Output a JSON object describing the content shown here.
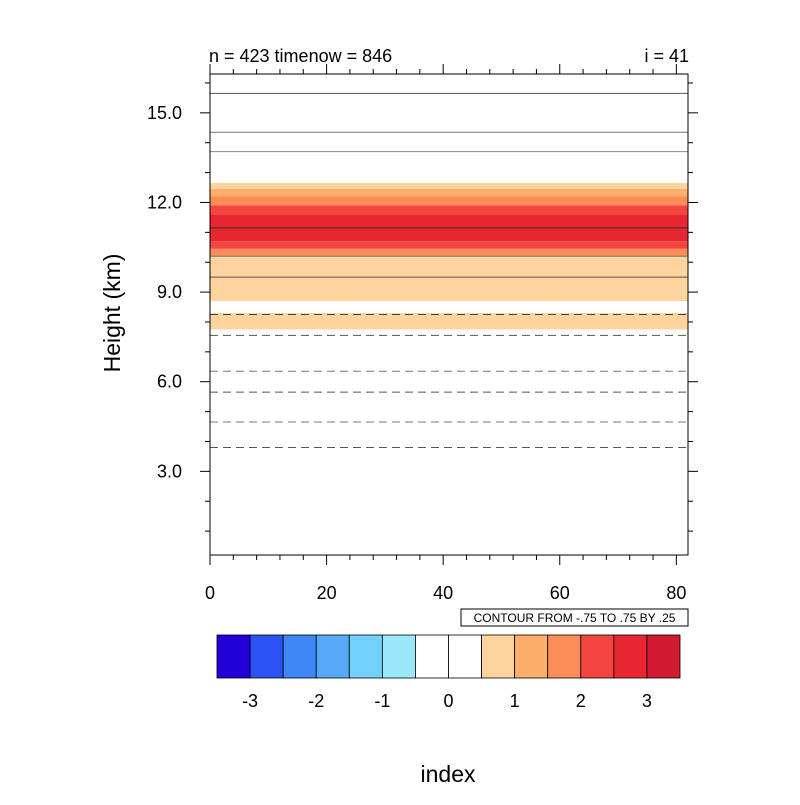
{
  "header": {
    "left_title": "n = 423 timenow = 846",
    "right_title": "i = 41"
  },
  "info_label": "CONTOUR FROM -.75 TO .75 BY .25",
  "chart_data": {
    "type": "heatmap",
    "xlabel": "index",
    "ylabel": "Height (km)",
    "xlim": [
      0,
      82
    ],
    "ylim": [
      0.2,
      16.3
    ],
    "x_ticks": [
      0,
      20,
      40,
      60,
      80
    ],
    "x_tick_labels": [
      "0",
      "20",
      "40",
      "60",
      "80"
    ],
    "y_ticks": [
      3,
      6,
      9,
      12,
      15
    ],
    "y_tick_labels": [
      "3.0",
      "6.0",
      "9.0",
      "12.0",
      "15.0"
    ],
    "grid": false,
    "shaded_bands": [
      {
        "y0": 7.75,
        "y1": 8.3,
        "value": 1,
        "color": "#fdd49e"
      },
      {
        "y0": 8.7,
        "y1": 10.2,
        "value": 1,
        "color": "#fdd49e"
      },
      {
        "y0": 10.2,
        "y1": 10.45,
        "value": 2,
        "color": "#fc8d59"
      },
      {
        "y0": 10.45,
        "y1": 10.7,
        "value": 2,
        "color": "#f4453f"
      },
      {
        "y0": 10.7,
        "y1": 11.6,
        "value": 3,
        "color": "#e8262f"
      },
      {
        "y0": 11.6,
        "y1": 11.9,
        "value": 2,
        "color": "#f4453f"
      },
      {
        "y0": 11.9,
        "y1": 12.2,
        "value": 2,
        "color": "#fc8d59"
      },
      {
        "y0": 12.2,
        "y1": 12.45,
        "value": 1,
        "color": "#fdae6b"
      },
      {
        "y0": 12.45,
        "y1": 12.65,
        "value": 1,
        "color": "#fdd49e"
      }
    ],
    "contours": [
      {
        "level": 0.75,
        "style": "solid",
        "y": 15.65,
        "color": "#555555"
      },
      {
        "level": 0.5,
        "style": "solid",
        "y": 14.35,
        "color": "#777777"
      },
      {
        "level": 0.25,
        "style": "solid",
        "y": 13.7,
        "color": "#888888"
      },
      {
        "level": 0.75,
        "style": "solid",
        "y": 11.15,
        "color": "#333333"
      },
      {
        "level": 0.5,
        "style": "solid",
        "y": 10.2,
        "color": "#777777"
      },
      {
        "level": 0.25,
        "style": "solid",
        "y": 9.5,
        "color": "#555555"
      },
      {
        "level": -0.25,
        "style": "dashed",
        "y": 8.25,
        "color": "#444444"
      },
      {
        "level": -0.5,
        "style": "dashed",
        "y": 7.55,
        "color": "#555555"
      },
      {
        "level": -0.75,
        "style": "dashed",
        "y": 6.35,
        "color": "#777777"
      },
      {
        "level": -0.75,
        "style": "dashed",
        "y": 5.65,
        "color": "#555555"
      },
      {
        "level": -0.5,
        "style": "dashed",
        "y": 4.65,
        "color": "#777777"
      },
      {
        "level": -0.25,
        "style": "dashed",
        "y": 3.8,
        "color": "#555555"
      }
    ],
    "colorbar": {
      "colors": [
        "#2200d8",
        "#2a52f5",
        "#3f86f7",
        "#57a9f9",
        "#72d0fa",
        "#9ce8fb",
        "#ffffff",
        "#ffffff",
        "#fdd49e",
        "#fdae6b",
        "#fc8d59",
        "#f4453f",
        "#e8262f",
        "#d11a32"
      ],
      "tick_values": [
        -3,
        -2,
        -1,
        0,
        1,
        2,
        3
      ],
      "tick_labels": [
        "-3",
        "-2",
        "-1",
        "0",
        "1",
        "2",
        "3"
      ]
    }
  }
}
